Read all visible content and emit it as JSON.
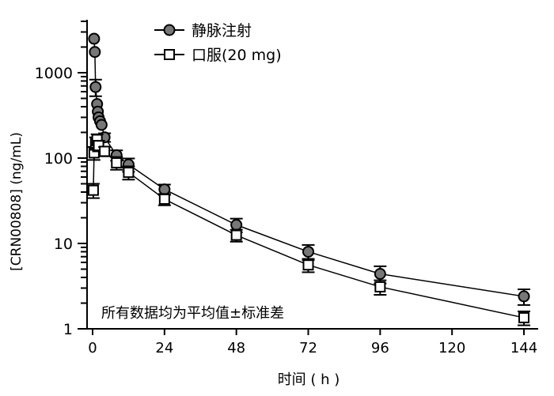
{
  "chart_data": {
    "type": "line",
    "title": "",
    "xlabel": "时间 ( h )",
    "ylabel": "[CRN00808] (ng/mL)",
    "xlim": [
      0,
      144
    ],
    "ylim": [
      1,
      4000
    ],
    "yscale": "log",
    "xticks": [
      "0",
      "24",
      "48",
      "72",
      "96",
      "120",
      "144"
    ],
    "yticks": [
      "1",
      "10",
      "100",
      "1000"
    ],
    "legend_position": "top-center",
    "annotation": "所有数据均为平均值±标准差",
    "series": [
      {
        "name": "静脉注射",
        "marker": "circle",
        "color": "#777777",
        "x": [
          0.5,
          0.75,
          1,
          1.5,
          1.75,
          2,
          2.5,
          3,
          4,
          8,
          12,
          24,
          48,
          72,
          96,
          144
        ],
        "y": [
          2500,
          1750,
          680,
          430,
          350,
          300,
          270,
          245,
          175,
          108,
          84,
          43,
          16.5,
          8,
          4.4,
          2.4
        ],
        "err": [
          0,
          0,
          150,
          0,
          0,
          0,
          0,
          0,
          20,
          15,
          15,
          6,
          3,
          1.6,
          1,
          0.5
        ]
      },
      {
        "name": "口服(20 mg)",
        "marker": "square",
        "color": "#ffffff",
        "x": [
          0.25,
          0.5,
          1,
          1.5,
          2,
          4,
          8,
          12,
          24,
          48,
          72,
          96,
          144
        ],
        "y": [
          42,
          115,
          150,
          165,
          140,
          120,
          88,
          68,
          33,
          12.5,
          5.6,
          3.1,
          1.35
        ],
        "err": [
          8,
          20,
          25,
          25,
          20,
          15,
          15,
          12,
          5,
          2,
          1,
          0.6,
          0.25
        ]
      }
    ]
  }
}
